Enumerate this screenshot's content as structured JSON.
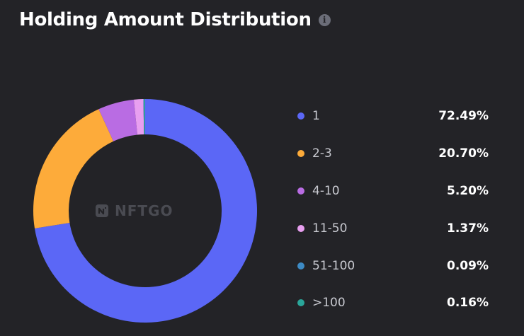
{
  "header": {
    "title": "Holding Amount Distribution",
    "info_icon": "info-icon"
  },
  "watermark": {
    "text": "NFTGO",
    "icon": "nftgo-logo-icon"
  },
  "chart_data": {
    "type": "pie",
    "title": "Holding Amount Distribution",
    "donut": true,
    "legend_position": "right",
    "categories": [
      "1",
      "2-3",
      "4-10",
      "11-50",
      "51-100",
      ">100"
    ],
    "values": [
      72.49,
      20.7,
      5.2,
      1.37,
      0.09,
      0.16
    ],
    "value_labels": [
      "72.49%",
      "20.70%",
      "5.20%",
      "1.37%",
      "0.09%",
      "0.16%"
    ],
    "unit": "%",
    "colors": [
      "#5b67f6",
      "#fdab3a",
      "#b96ce3",
      "#e89ff0",
      "#3d8ac4",
      "#2aa69a"
    ]
  }
}
